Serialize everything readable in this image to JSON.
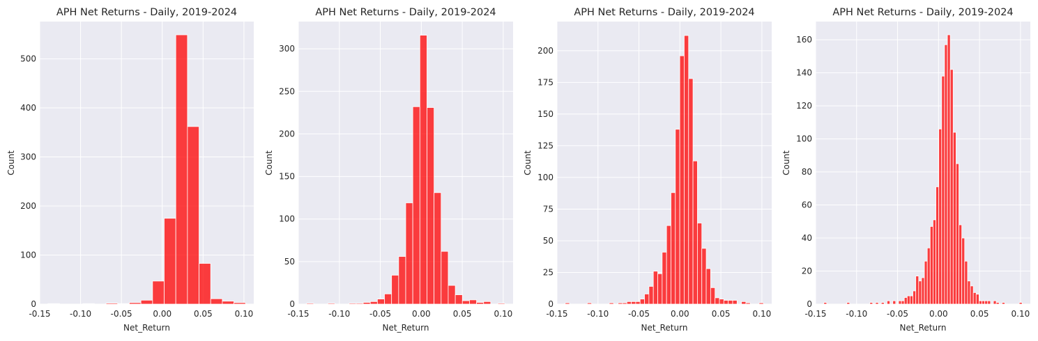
{
  "chart_data": [
    {
      "type": "histogram",
      "title": "APH Net Returns - Daily, 2019-2024",
      "xlabel": "Net_Return",
      "ylabel": "Count",
      "color": "#ff0000",
      "background": "#eaeaf2",
      "grid": true,
      "bin_range": [
        -0.14,
        0.102
      ],
      "xlim": [
        -0.15,
        0.112
      ],
      "ylim": [
        0,
        576
      ],
      "xticks": [
        "-0.15",
        "-0.10",
        "-0.05",
        "0.00",
        "0.05",
        "0.10"
      ],
      "yticks": [
        "0",
        "100",
        "200",
        "300",
        "400",
        "500"
      ],
      "values": [
        1,
        0,
        0,
        1,
        0,
        2,
        1,
        3,
        8,
        47,
        175,
        549,
        362,
        83,
        11,
        6,
        3
      ]
    },
    {
      "type": "histogram",
      "title": "APH Net Returns - Daily, 2019-2024",
      "xlabel": "Net_Return",
      "ylabel": "Count",
      "color": "#ff0000",
      "background": "#eaeaf2",
      "grid": true,
      "bin_range": [
        -0.14,
        0.102
      ],
      "xlim": [
        -0.15,
        0.112
      ],
      "ylim": [
        0,
        332
      ],
      "xticks": [
        "-0.15",
        "-0.10",
        "-0.05",
        "0.00",
        "0.05",
        "0.10"
      ],
      "yticks": [
        "0",
        "50",
        "100",
        "150",
        "200",
        "250",
        "300"
      ],
      "values": [
        1,
        0,
        0,
        1,
        0,
        0,
        1,
        1,
        2,
        3,
        6,
        12,
        34,
        56,
        119,
        232,
        316,
        231,
        131,
        62,
        22,
        11,
        4,
        5,
        2,
        3,
        0,
        1
      ]
    },
    {
      "type": "histogram",
      "title": "APH Net Returns - Daily, 2019-2024",
      "xlabel": "Net_Return",
      "ylabel": "Count",
      "color": "#ff0000",
      "background": "#eaeaf2",
      "grid": true,
      "bin_range": [
        -0.14,
        0.102
      ],
      "xlim": [
        -0.15,
        0.112
      ],
      "ylim": [
        0,
        223
      ],
      "xticks": [
        "-0.15",
        "-0.10",
        "-0.05",
        "0.00",
        "0.05",
        "0.10"
      ],
      "yticks": [
        "0",
        "25",
        "50",
        "75",
        "100",
        "125",
        "150",
        "175",
        "200"
      ],
      "values": [
        1,
        0,
        0,
        0,
        0,
        1,
        0,
        0,
        0,
        0,
        1,
        0,
        1,
        1,
        2,
        2,
        2,
        4,
        8,
        14,
        26,
        24,
        41,
        62,
        88,
        138,
        196,
        212,
        178,
        113,
        64,
        44,
        28,
        13,
        5,
        4,
        3,
        3,
        3,
        0,
        2,
        1,
        0,
        0,
        1
      ]
    },
    {
      "type": "histogram",
      "title": "APH Net Returns - Daily, 2019-2024",
      "xlabel": "Net_Return",
      "ylabel": "Count",
      "color": "#ff0000",
      "background": "#eaeaf2",
      "grid": true,
      "bin_range": [
        -0.14,
        0.102
      ],
      "xlim": [
        -0.15,
        0.112
      ],
      "ylim": [
        0,
        171
      ],
      "xticks": [
        "-0.15",
        "-0.10",
        "-0.05",
        "0.00",
        "0.05",
        "0.10"
      ],
      "yticks": [
        "0",
        "20",
        "40",
        "60",
        "80",
        "100",
        "120",
        "140",
        "160"
      ],
      "values": [
        1,
        0,
        0,
        0,
        0,
        0,
        0,
        0,
        1,
        0,
        0,
        0,
        0,
        0,
        0,
        0,
        1,
        0,
        1,
        0,
        1,
        0,
        2,
        0,
        2,
        0,
        2,
        2,
        4,
        5,
        5,
        8,
        17,
        14,
        16,
        26,
        34,
        47,
        51,
        71,
        106,
        138,
        157,
        163,
        142,
        104,
        85,
        48,
        40,
        26,
        14,
        11,
        7,
        6,
        2,
        2,
        2,
        2,
        0,
        2,
        1,
        0,
        1,
        0,
        0,
        0,
        0,
        0,
        1
      ]
    }
  ]
}
